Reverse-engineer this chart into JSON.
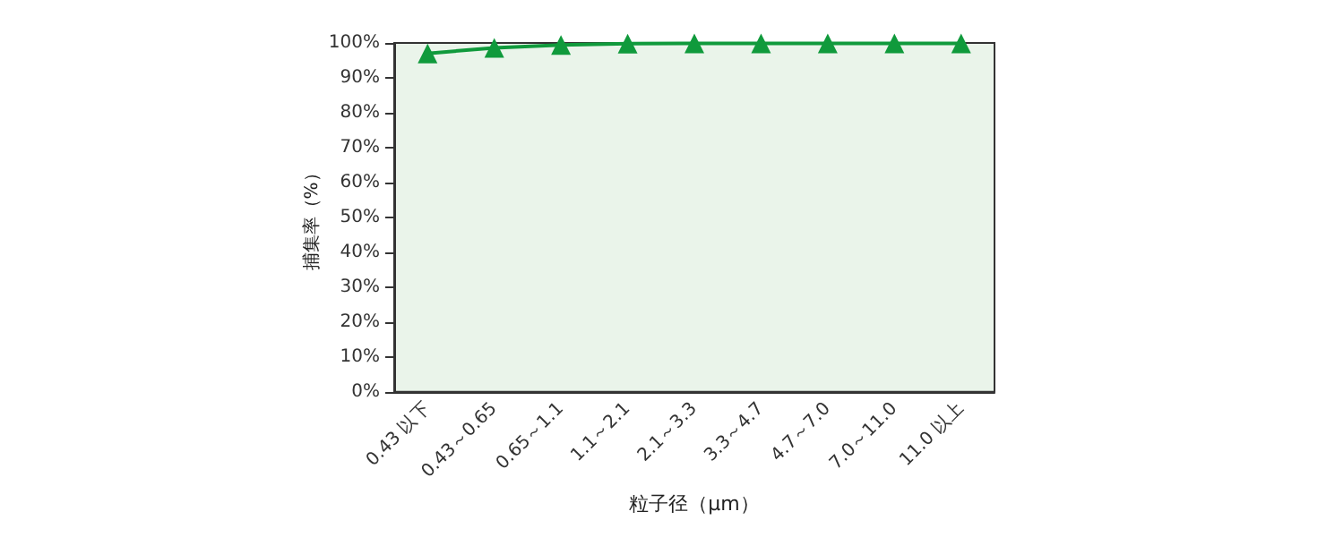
{
  "chart_data": {
    "type": "line",
    "xlabel": "粒子径（μm）",
    "ylabel": "捕集率（%）",
    "categories": [
      "0.43 以下",
      "0.43～0.65",
      "0.65～1.1",
      "1.1～2.1",
      "2.1～3.3",
      "3.3～4.7",
      "4.7～7.0",
      "7.0～11.0",
      "11.0 以上"
    ],
    "series": [
      {
        "color": "#109a3c",
        "values": [
          97.0,
          98.6,
          99.4,
          99.8,
          99.9,
          99.9,
          99.9,
          99.9,
          99.9
        ]
      }
    ],
    "ylim": [
      0,
      100
    ],
    "yticks": [
      {
        "value": 0,
        "label": "0%"
      },
      {
        "value": 10,
        "label": "10%"
      },
      {
        "value": 20,
        "label": "20%"
      },
      {
        "value": 30,
        "label": "30%"
      },
      {
        "value": 40,
        "label": "40%"
      },
      {
        "value": 50,
        "label": "50%"
      },
      {
        "value": 60,
        "label": "60%"
      },
      {
        "value": 70,
        "label": "70%"
      },
      {
        "value": 80,
        "label": "80%"
      },
      {
        "value": 90,
        "label": "90%"
      },
      {
        "value": 100,
        "label": "100%"
      }
    ],
    "marker": "triangle"
  }
}
